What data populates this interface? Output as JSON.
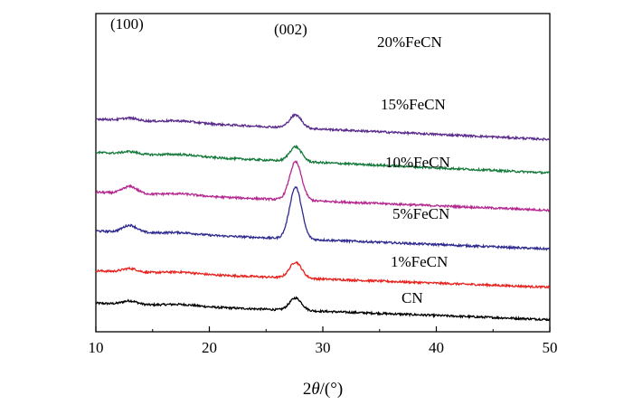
{
  "chart_data": {
    "type": "line",
    "xlabel_prefix": "2",
    "xlabel_symbol": "θ",
    "xlabel_unit": "/(°)",
    "xlim": [
      10,
      50
    ],
    "xticks": [
      "10",
      "20",
      "30",
      "40",
      "50"
    ],
    "grid": false,
    "peak_annotations": [
      {
        "text": "(100)",
        "x": 13.5
      },
      {
        "text": "(002)",
        "x": 27.7
      }
    ],
    "series": [
      {
        "name": "CN",
        "color": "#000000",
        "baseline": 0.0,
        "peak13": 0.06,
        "peak27": 0.21,
        "slope": 1.0
      },
      {
        "name": "1%FeCN",
        "color": "#e8231f",
        "baseline": 0.55,
        "peak13": 0.06,
        "peak27": 0.27,
        "slope": 1.0
      },
      {
        "name": "5%FeCN",
        "color": "#2e2a8f",
        "baseline": 1.21,
        "peak13": 0.12,
        "peak27": 0.88,
        "slope": 1.1
      },
      {
        "name": "10%FeCN",
        "color": "#b5288f",
        "baseline": 1.87,
        "peak13": 0.12,
        "peak27": 0.65,
        "slope": 1.1
      },
      {
        "name": "15%FeCN",
        "color": "#157a3b",
        "baseline": 2.52,
        "peak13": 0.04,
        "peak27": 0.25,
        "slope": 1.25
      },
      {
        "name": "20%FeCN",
        "color": "#5a2c8c",
        "baseline": 3.09,
        "peak13": 0.04,
        "peak27": 0.22,
        "slope": 1.25
      }
    ]
  }
}
